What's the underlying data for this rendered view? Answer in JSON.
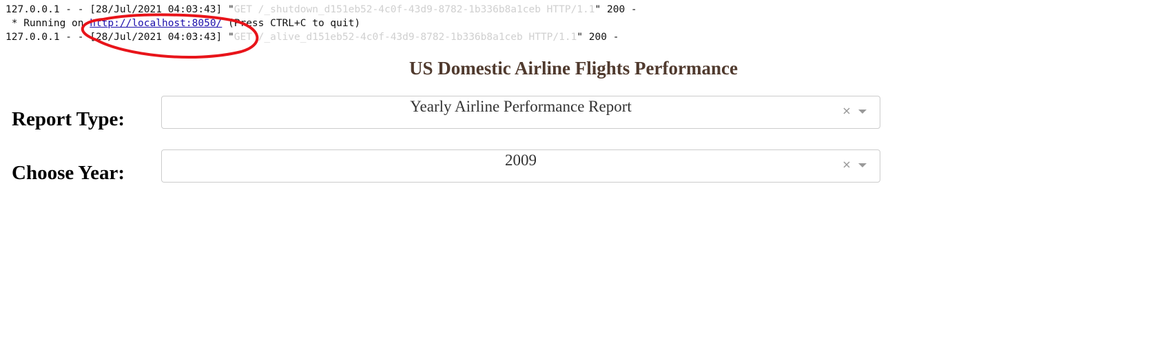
{
  "log": {
    "lines": [
      {
        "before": "127.0.0.1 - - [28/Jul/2021 04:03:43] \"",
        "request": "GET /_shutdown_d151eb52-4c0f-43d9-8782-1b336b8a1ceb HTTP/1.1",
        "after": "\" 200 -"
      },
      {
        "before": " * Running on ",
        "link": "http://localhost:8050/",
        "after": " (Press CTRL+C to quit)"
      },
      {
        "before": "127.0.0.1 - - [28/Jul/2021 04:03:43] \"",
        "request": "GET /_alive_d151eb52-4c0f-43d9-8782-1b336b8a1ceb HTTP/1.1",
        "after": "\" 200 -"
      }
    ]
  },
  "header": {
    "title": "US Domestic Airline Flights Performance"
  },
  "form": {
    "fields": [
      {
        "label": "Report Type:",
        "value": "Yearly Airline Performance Report"
      },
      {
        "label": "Choose Year:",
        "value": "2009"
      }
    ]
  }
}
